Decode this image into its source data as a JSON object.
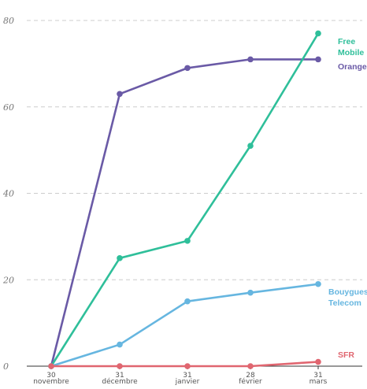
{
  "chart_data": {
    "type": "line",
    "categories": [
      {
        "day": "30",
        "month": "novembre"
      },
      {
        "day": "31",
        "month": "décembre"
      },
      {
        "day": "31",
        "month": "janvier"
      },
      {
        "day": "28",
        "month": "février"
      },
      {
        "day": "31",
        "month": "mars"
      }
    ],
    "ylim": [
      0,
      80
    ],
    "yticks": [
      0,
      20,
      40,
      60,
      80
    ],
    "grid": "horizontal dashed",
    "legend": "inline labels at line ends",
    "series": [
      {
        "name": "Orange",
        "label_lines": [
          "Orange"
        ],
        "color": "#6a5aa6",
        "values": [
          0,
          63,
          69,
          71,
          71
        ]
      },
      {
        "name": "Free Mobile",
        "label_lines": [
          "Free",
          "Mobile"
        ],
        "color": "#2fbf9a",
        "values": [
          0,
          25,
          29,
          51,
          77
        ]
      },
      {
        "name": "Bouygues Telecom",
        "label_lines": [
          "Bouygues",
          "Telecom"
        ],
        "color": "#66b6e0",
        "values": [
          0,
          5,
          15,
          17,
          19
        ]
      },
      {
        "name": "SFR",
        "label_lines": [
          "SFR"
        ],
        "color": "#e06670",
        "values": [
          0,
          0,
          0,
          0,
          1
        ]
      }
    ]
  }
}
